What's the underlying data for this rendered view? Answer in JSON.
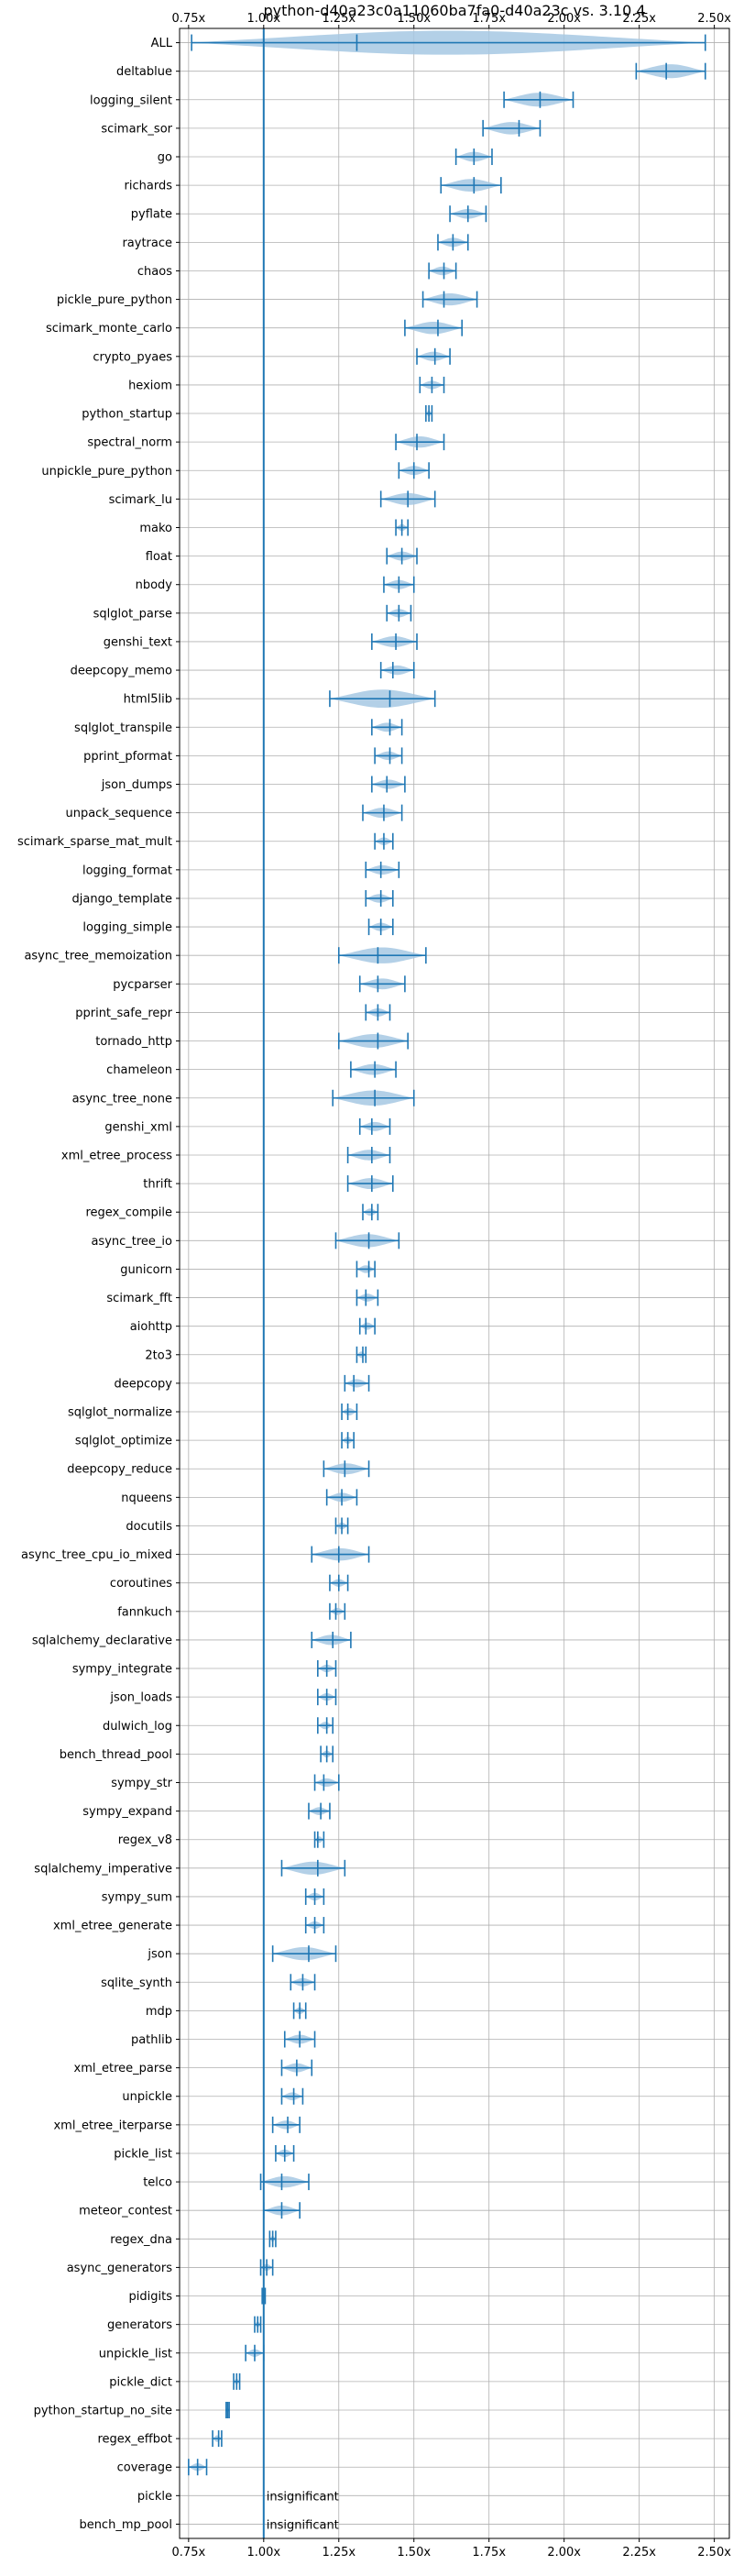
{
  "chart_data": {
    "type": "violin",
    "orientation": "horizontal",
    "title": "python-d40a23c0a11060ba7fa0-d40a23c vs. 3.10.4",
    "xlim": [
      0.72,
      2.55
    ],
    "xticks": [
      0.75,
      1.0,
      1.25,
      1.5,
      1.75,
      2.0,
      2.25,
      2.5
    ],
    "xtick_labels": [
      "0.75x",
      "1.00x",
      "1.25x",
      "1.50x",
      "1.75x",
      "2.00x",
      "2.25x",
      "2.50x"
    ],
    "reference_line": 1.0,
    "grid": true,
    "colors": {
      "violin": "#a6c8e3",
      "line": "#1f77b4"
    },
    "categories": [
      {
        "name": "ALL",
        "min": 0.76,
        "median": 1.31,
        "max": 2.47
      },
      {
        "name": "deltablue",
        "min": 2.24,
        "median": 2.34,
        "max": 2.47
      },
      {
        "name": "logging_silent",
        "min": 1.8,
        "median": 1.92,
        "max": 2.03
      },
      {
        "name": "scimark_sor",
        "min": 1.73,
        "median": 1.85,
        "max": 1.92
      },
      {
        "name": "go",
        "min": 1.64,
        "median": 1.7,
        "max": 1.76
      },
      {
        "name": "richards",
        "min": 1.59,
        "median": 1.7,
        "max": 1.79
      },
      {
        "name": "pyflate",
        "min": 1.62,
        "median": 1.68,
        "max": 1.74
      },
      {
        "name": "raytrace",
        "min": 1.58,
        "median": 1.63,
        "max": 1.68
      },
      {
        "name": "chaos",
        "min": 1.55,
        "median": 1.6,
        "max": 1.64
      },
      {
        "name": "pickle_pure_python",
        "min": 1.53,
        "median": 1.6,
        "max": 1.71
      },
      {
        "name": "scimark_monte_carlo",
        "min": 1.47,
        "median": 1.58,
        "max": 1.66
      },
      {
        "name": "crypto_pyaes",
        "min": 1.51,
        "median": 1.57,
        "max": 1.62
      },
      {
        "name": "hexiom",
        "min": 1.52,
        "median": 1.56,
        "max": 1.6
      },
      {
        "name": "python_startup",
        "min": 1.54,
        "median": 1.55,
        "max": 1.56
      },
      {
        "name": "spectral_norm",
        "min": 1.44,
        "median": 1.51,
        "max": 1.6
      },
      {
        "name": "unpickle_pure_python",
        "min": 1.45,
        "median": 1.5,
        "max": 1.55
      },
      {
        "name": "scimark_lu",
        "min": 1.39,
        "median": 1.48,
        "max": 1.57
      },
      {
        "name": "mako",
        "min": 1.44,
        "median": 1.46,
        "max": 1.48
      },
      {
        "name": "float",
        "min": 1.41,
        "median": 1.46,
        "max": 1.51
      },
      {
        "name": "nbody",
        "min": 1.4,
        "median": 1.45,
        "max": 1.5
      },
      {
        "name": "sqlglot_parse",
        "min": 1.41,
        "median": 1.45,
        "max": 1.49
      },
      {
        "name": "genshi_text",
        "min": 1.36,
        "median": 1.44,
        "max": 1.51
      },
      {
        "name": "deepcopy_memo",
        "min": 1.39,
        "median": 1.43,
        "max": 1.5
      },
      {
        "name": "html5lib",
        "min": 1.22,
        "median": 1.42,
        "max": 1.57
      },
      {
        "name": "sqlglot_transpile",
        "min": 1.36,
        "median": 1.42,
        "max": 1.46
      },
      {
        "name": "pprint_pformat",
        "min": 1.37,
        "median": 1.42,
        "max": 1.46
      },
      {
        "name": "json_dumps",
        "min": 1.36,
        "median": 1.41,
        "max": 1.47
      },
      {
        "name": "unpack_sequence",
        "min": 1.33,
        "median": 1.4,
        "max": 1.46
      },
      {
        "name": "scimark_sparse_mat_mult",
        "min": 1.37,
        "median": 1.4,
        "max": 1.43
      },
      {
        "name": "logging_format",
        "min": 1.34,
        "median": 1.39,
        "max": 1.45
      },
      {
        "name": "django_template",
        "min": 1.34,
        "median": 1.39,
        "max": 1.43
      },
      {
        "name": "logging_simple",
        "min": 1.35,
        "median": 1.39,
        "max": 1.43
      },
      {
        "name": "async_tree_memoization",
        "min": 1.25,
        "median": 1.38,
        "max": 1.54
      },
      {
        "name": "pycparser",
        "min": 1.32,
        "median": 1.38,
        "max": 1.47
      },
      {
        "name": "pprint_safe_repr",
        "min": 1.34,
        "median": 1.38,
        "max": 1.42
      },
      {
        "name": "tornado_http",
        "min": 1.25,
        "median": 1.38,
        "max": 1.48
      },
      {
        "name": "chameleon",
        "min": 1.29,
        "median": 1.37,
        "max": 1.44
      },
      {
        "name": "async_tree_none",
        "min": 1.23,
        "median": 1.37,
        "max": 1.5
      },
      {
        "name": "genshi_xml",
        "min": 1.32,
        "median": 1.36,
        "max": 1.42
      },
      {
        "name": "xml_etree_process",
        "min": 1.28,
        "median": 1.36,
        "max": 1.42
      },
      {
        "name": "thrift",
        "min": 1.28,
        "median": 1.36,
        "max": 1.43
      },
      {
        "name": "regex_compile",
        "min": 1.33,
        "median": 1.36,
        "max": 1.38
      },
      {
        "name": "async_tree_io",
        "min": 1.24,
        "median": 1.35,
        "max": 1.45
      },
      {
        "name": "gunicorn",
        "min": 1.31,
        "median": 1.35,
        "max": 1.37
      },
      {
        "name": "scimark_fft",
        "min": 1.31,
        "median": 1.34,
        "max": 1.38
      },
      {
        "name": "aiohttp",
        "min": 1.32,
        "median": 1.34,
        "max": 1.37
      },
      {
        "name": "2to3",
        "min": 1.31,
        "median": 1.33,
        "max": 1.34
      },
      {
        "name": "deepcopy",
        "min": 1.27,
        "median": 1.3,
        "max": 1.35
      },
      {
        "name": "sqlglot_normalize",
        "min": 1.26,
        "median": 1.28,
        "max": 1.31
      },
      {
        "name": "sqlglot_optimize",
        "min": 1.26,
        "median": 1.28,
        "max": 1.3
      },
      {
        "name": "deepcopy_reduce",
        "min": 1.2,
        "median": 1.27,
        "max": 1.35
      },
      {
        "name": "nqueens",
        "min": 1.21,
        "median": 1.26,
        "max": 1.31
      },
      {
        "name": "docutils",
        "min": 1.24,
        "median": 1.26,
        "max": 1.28
      },
      {
        "name": "async_tree_cpu_io_mixed",
        "min": 1.16,
        "median": 1.25,
        "max": 1.35
      },
      {
        "name": "coroutines",
        "min": 1.22,
        "median": 1.25,
        "max": 1.28
      },
      {
        "name": "fannkuch",
        "min": 1.22,
        "median": 1.24,
        "max": 1.27
      },
      {
        "name": "sqlalchemy_declarative",
        "min": 1.16,
        "median": 1.23,
        "max": 1.29
      },
      {
        "name": "sympy_integrate",
        "min": 1.18,
        "median": 1.21,
        "max": 1.24
      },
      {
        "name": "json_loads",
        "min": 1.18,
        "median": 1.21,
        "max": 1.24
      },
      {
        "name": "dulwich_log",
        "min": 1.18,
        "median": 1.21,
        "max": 1.23
      },
      {
        "name": "bench_thread_pool",
        "min": 1.19,
        "median": 1.21,
        "max": 1.23
      },
      {
        "name": "sympy_str",
        "min": 1.17,
        "median": 1.2,
        "max": 1.25
      },
      {
        "name": "sympy_expand",
        "min": 1.15,
        "median": 1.19,
        "max": 1.22
      },
      {
        "name": "regex_v8",
        "min": 1.17,
        "median": 1.18,
        "max": 1.2
      },
      {
        "name": "sqlalchemy_imperative",
        "min": 1.06,
        "median": 1.18,
        "max": 1.27
      },
      {
        "name": "sympy_sum",
        "min": 1.14,
        "median": 1.17,
        "max": 1.2
      },
      {
        "name": "xml_etree_generate",
        "min": 1.14,
        "median": 1.17,
        "max": 1.2
      },
      {
        "name": "json",
        "min": 1.03,
        "median": 1.15,
        "max": 1.24
      },
      {
        "name": "sqlite_synth",
        "min": 1.09,
        "median": 1.13,
        "max": 1.17
      },
      {
        "name": "mdp",
        "min": 1.1,
        "median": 1.12,
        "max": 1.14
      },
      {
        "name": "pathlib",
        "min": 1.07,
        "median": 1.12,
        "max": 1.17
      },
      {
        "name": "xml_etree_parse",
        "min": 1.06,
        "median": 1.11,
        "max": 1.16
      },
      {
        "name": "unpickle",
        "min": 1.06,
        "median": 1.1,
        "max": 1.13
      },
      {
        "name": "xml_etree_iterparse",
        "min": 1.03,
        "median": 1.08,
        "max": 1.12
      },
      {
        "name": "pickle_list",
        "min": 1.04,
        "median": 1.07,
        "max": 1.1
      },
      {
        "name": "telco",
        "min": 0.99,
        "median": 1.06,
        "max": 1.15
      },
      {
        "name": "meteor_contest",
        "min": 1.0,
        "median": 1.06,
        "max": 1.12
      },
      {
        "name": "regex_dna",
        "min": 1.02,
        "median": 1.03,
        "max": 1.04
      },
      {
        "name": "async_generators",
        "min": 0.99,
        "median": 1.01,
        "max": 1.03
      },
      {
        "name": "pidigits",
        "min": 0.995,
        "median": 1.0,
        "max": 1.005
      },
      {
        "name": "generators",
        "min": 0.97,
        "median": 0.98,
        "max": 0.99
      },
      {
        "name": "unpickle_list",
        "min": 0.94,
        "median": 0.97,
        "max": 1.0
      },
      {
        "name": "pickle_dict",
        "min": 0.9,
        "median": 0.91,
        "max": 0.92
      },
      {
        "name": "python_startup_no_site",
        "min": 0.875,
        "median": 0.88,
        "max": 0.885
      },
      {
        "name": "regex_effbot",
        "min": 0.83,
        "median": 0.85,
        "max": 0.86
      },
      {
        "name": "coverage",
        "min": 0.75,
        "median": 0.78,
        "max": 0.81
      },
      {
        "name": "pickle",
        "insignificant": true
      },
      {
        "name": "bench_mp_pool",
        "insignificant": true
      }
    ],
    "annotation_text": "insignificant"
  }
}
